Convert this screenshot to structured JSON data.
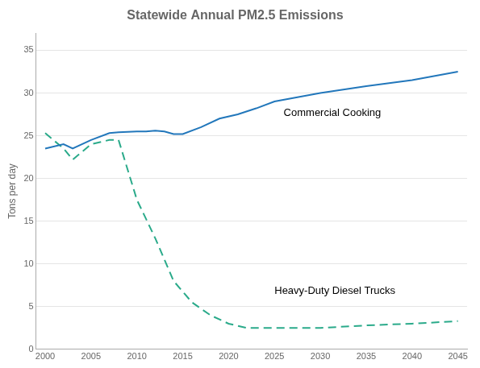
{
  "chart_data": {
    "type": "line",
    "title": "Statewide Annual PM2.5 Emissions",
    "y_label": "Tons per day",
    "xlim": [
      1999,
      2046
    ],
    "xticks": [
      2000,
      2005,
      2010,
      2015,
      2020,
      2025,
      2030,
      2035,
      2040,
      2045
    ],
    "ylim": [
      0,
      37
    ],
    "yticks": [
      0,
      5,
      10,
      15,
      20,
      25,
      30,
      35
    ],
    "grid": "y",
    "series": [
      {
        "name": "Commercial Cooking",
        "color": "#2277bb",
        "line_style": "solid",
        "x": [
          2000,
          2002,
          2003,
          2005,
          2007,
          2008,
          2010,
          2011,
          2012,
          2013,
          2014,
          2015,
          2017,
          2019,
          2021,
          2023,
          2025,
          2030,
          2035,
          2040,
          2045
        ],
        "values": [
          23.5,
          24.0,
          23.5,
          24.5,
          25.3,
          25.4,
          25.5,
          25.5,
          25.6,
          25.5,
          25.2,
          25.2,
          26.0,
          27.0,
          27.5,
          28.2,
          29.0,
          30.0,
          30.8,
          31.5,
          32.5
        ]
      },
      {
        "name": "Heavy-Duty Diesel Trucks",
        "color": "#2aaa8a",
        "line_style": "dashed",
        "x": [
          2000,
          2002,
          2003,
          2005,
          2007,
          2008,
          2010,
          2012,
          2014,
          2016,
          2018,
          2020,
          2022,
          2025,
          2030,
          2035,
          2040,
          2045
        ],
        "values": [
          25.3,
          23.5,
          22.2,
          24.0,
          24.5,
          24.5,
          17.5,
          13.0,
          8.0,
          5.5,
          4.0,
          3.0,
          2.5,
          2.5,
          2.5,
          2.8,
          3.0,
          3.3
        ]
      }
    ],
    "annotations": [
      {
        "text": "Commercial Cooking",
        "x": 2026,
        "y": 27.0
      },
      {
        "text": "Heavy-Duty Diesel Trucks",
        "x": 2025,
        "y": 6.2
      }
    ]
  }
}
